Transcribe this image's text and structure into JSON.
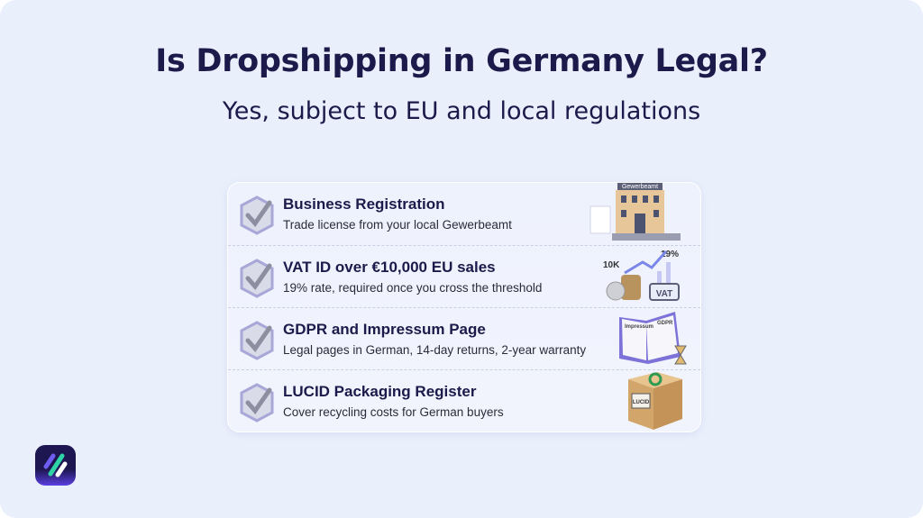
{
  "header": {
    "title": "Is Dropshipping in Germany Legal?",
    "subtitle": "Yes, subject to EU and local regulations"
  },
  "items": [
    {
      "title": "Business Registration",
      "description": "Trade license from your local Gewerbeamt",
      "illustration": "building-icon",
      "illustration_labels": [
        "Gewerbeamt"
      ]
    },
    {
      "title": "VAT ID over €10,000 EU sales",
      "description": "19% rate, required once you cross the threshold",
      "illustration": "coins-chart-icon",
      "illustration_labels": [
        "10K",
        "19%",
        "VAT"
      ]
    },
    {
      "title": "GDPR and Impressum Page",
      "description": "Legal pages in German, 14-day returns, 2-year warranty",
      "illustration": "open-book-icon",
      "illustration_labels": [
        "Impressum",
        "GDPR"
      ]
    },
    {
      "title": "LUCID Packaging Register",
      "description": "Cover recycling costs for German buyers",
      "illustration": "recycle-box-icon",
      "illustration_labels": [
        "LUCID"
      ]
    }
  ],
  "colors": {
    "title": "#1b1a4b",
    "background": "#e9effb",
    "accent": "#5a3fe0",
    "logo_green": "#2fd3a6"
  }
}
